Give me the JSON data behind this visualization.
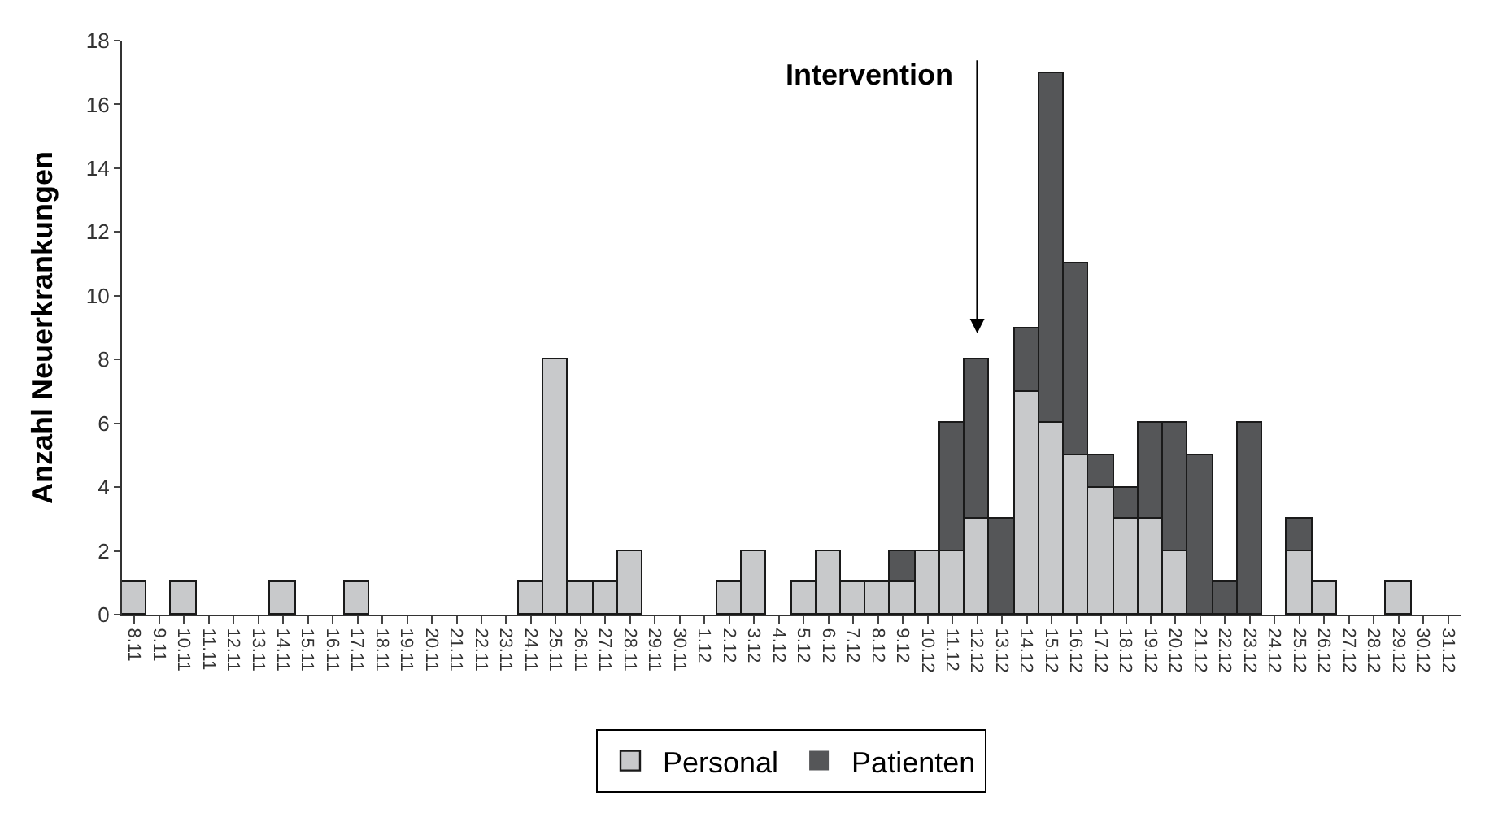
{
  "chart_data": {
    "type": "bar",
    "stacked": true,
    "ylabel": "Anzahl Neuerkrankungen",
    "categories": [
      "8.11",
      "9.11",
      "10.11",
      "11.11",
      "12.11",
      "13.11",
      "14.11",
      "15.11",
      "16.11",
      "17.11",
      "18.11",
      "19.11",
      "20.11",
      "21.11",
      "22.11",
      "23.11",
      "24.11",
      "25.11",
      "26.11",
      "27.11",
      "28.11",
      "29.11",
      "30.11",
      "1.12",
      "2.12",
      "3.12",
      "4.12",
      "5.12",
      "6.12",
      "7.12",
      "8.12",
      "9.12",
      "10.12",
      "11.12",
      "12.12",
      "13.12",
      "14.12",
      "15.12",
      "16.12",
      "17.12",
      "18.12",
      "19.12",
      "20.12",
      "21.12",
      "22.12",
      "23.12",
      "24.12",
      "25.12",
      "26.12",
      "27.12",
      "28.12",
      "29.12",
      "30.12",
      "31.12"
    ],
    "series": [
      {
        "name": "Personal",
        "color": "#c8c9cb",
        "values": [
          1,
          0,
          1,
          0,
          0,
          0,
          1,
          0,
          0,
          1,
          0,
          0,
          0,
          0,
          0,
          0,
          1,
          8,
          1,
          1,
          2,
          0,
          0,
          0,
          1,
          2,
          0,
          1,
          2,
          1,
          1,
          1,
          2,
          2,
          3,
          0,
          7,
          6,
          5,
          4,
          3,
          3,
          2,
          0,
          0,
          0,
          0,
          2,
          1,
          0,
          0,
          1,
          0,
          0
        ]
      },
      {
        "name": "Patienten",
        "color": "#555658",
        "values": [
          0,
          0,
          0,
          0,
          0,
          0,
          0,
          0,
          0,
          0,
          0,
          0,
          0,
          0,
          0,
          0,
          0,
          0,
          0,
          0,
          0,
          0,
          0,
          0,
          0,
          0,
          0,
          0,
          0,
          0,
          0,
          1,
          0,
          4,
          5,
          3,
          2,
          11,
          6,
          1,
          1,
          3,
          4,
          5,
          1,
          6,
          0,
          1,
          0,
          0,
          0,
          0,
          0,
          0
        ]
      }
    ],
    "ylim": [
      0,
      18
    ],
    "yticks": [
      0,
      2,
      4,
      6,
      8,
      10,
      12,
      14,
      16,
      18
    ],
    "legend": "bottom",
    "annotations": [
      "Intervention"
    ]
  }
}
